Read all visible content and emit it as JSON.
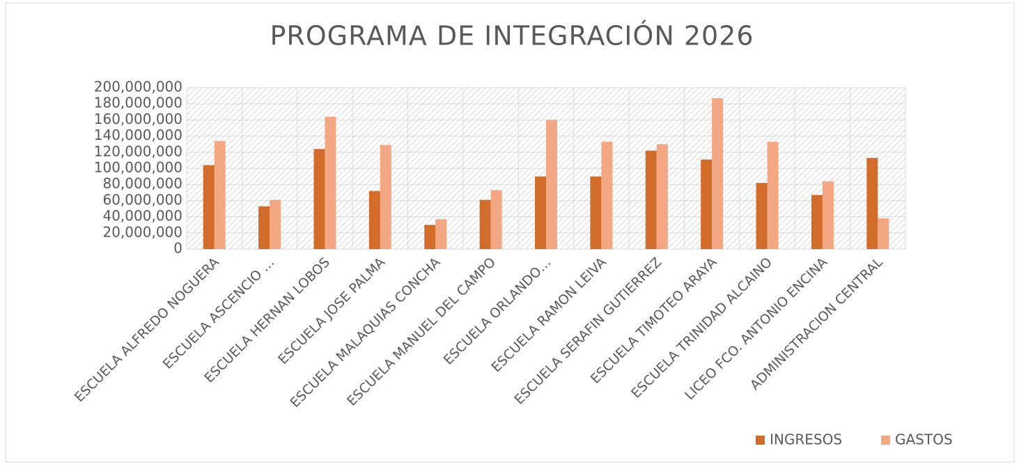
{
  "chart_data": {
    "type": "bar",
    "title": "PROGRAMA DE INTEGRACIÓN 2026",
    "categories": [
      "ESCUELA ALFREDO NOGUERA",
      "ESCUELA ASCENCIO …",
      "ESCUELA HERNAN LOBOS",
      "ESCUELA JOSE PALMA",
      "ESCUELA MALAQUIAS CONCHA",
      "ESCUELA MANUEL DEL CAMPO",
      "ESCUELA ORLANDO…",
      "ESCUELA RAMON LEIVA",
      "ESCUELA SERAFIN GUTIERREZ",
      "ESCUELA TIMOTEO ARAYA",
      "ESCUELA TRINIDAD ALCAINO",
      "LICEO FCO. ANTONIO ENCINA",
      "ADMINISTRACION CENTRAL"
    ],
    "series": [
      {
        "name": "INGRESOS",
        "color": "#d26c2b",
        "values": [
          104000000,
          53000000,
          124000000,
          72000000,
          30000000,
          61000000,
          90000000,
          90000000,
          122000000,
          111000000,
          82000000,
          67000000,
          113000000
        ]
      },
      {
        "name": "GASTOS",
        "color": "#f3a783",
        "values": [
          134000000,
          61000000,
          164000000,
          129000000,
          37000000,
          73000000,
          160000000,
          133000000,
          130000000,
          187000000,
          133000000,
          84000000,
          38000000
        ]
      }
    ],
    "ylim": [
      0,
      200000000
    ],
    "yticks": [
      0,
      {
        "value": 20000000,
        "label": "20,000,000"
      },
      {
        "value": 40000000,
        "label": "40,000,000"
      },
      {
        "value": 60000000,
        "label": "60,000,000"
      },
      {
        "value": 80000000,
        "label": "80,000,000"
      },
      {
        "value": 100000000,
        "label": "100,000,000"
      },
      {
        "value": 120000000,
        "label": "120,000,000"
      },
      {
        "value": 140000000,
        "label": "140,000,000"
      },
      {
        "value": 160000000,
        "label": "160,000,000"
      },
      {
        "value": 180000000,
        "label": "180,000,000"
      },
      {
        "value": 200000000,
        "label": "200,000,000"
      }
    ],
    "grid": true,
    "legend": "bottom-right"
  }
}
